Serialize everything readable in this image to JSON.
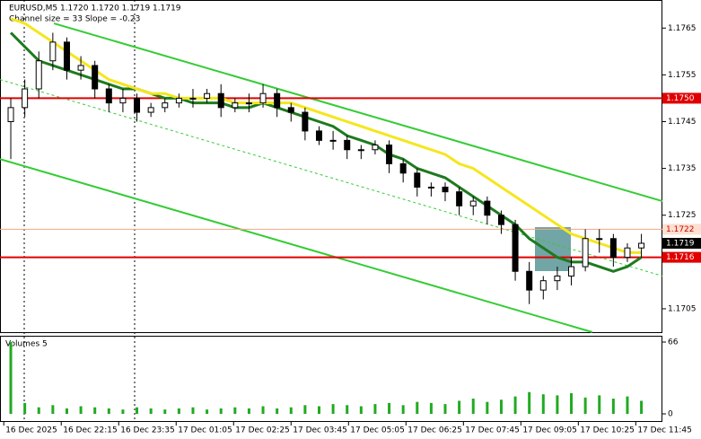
{
  "chart_data": {
    "type": "candlestick",
    "symbol_line": "EURUSD,M5  1.1720 1.1720 1.1719 1.1719",
    "channel_line": "Channel size = 33 Slope = -0.23",
    "volume_title": "Volumes 5",
    "open": [
      1.1745,
      1.1748,
      1.1752,
      1.1758,
      1.1762,
      1.1756,
      1.1757,
      1.1752,
      1.1749,
      1.175,
      1.1747,
      1.1748,
      1.1749,
      1.175,
      1.175,
      1.1751,
      1.1748,
      1.1749,
      1.1749,
      1.1751,
      1.1748,
      1.1747,
      1.1743,
      1.1741,
      1.1741,
      1.1739,
      1.1739,
      1.174,
      1.1736,
      1.1734,
      1.1731,
      1.1731,
      1.173,
      1.1727,
      1.1728,
      1.1725,
      1.1723,
      1.1713,
      1.1709,
      1.1711,
      1.1712,
      1.1714,
      1.172,
      1.172,
      1.1716,
      1.1718
    ],
    "high": [
      1.175,
      1.1754,
      1.176,
      1.1764,
      1.1763,
      1.1759,
      1.1758,
      1.1753,
      1.1752,
      1.1751,
      1.1749,
      1.175,
      1.1751,
      1.1752,
      1.1752,
      1.1753,
      1.175,
      1.1751,
      1.1753,
      1.1752,
      1.1749,
      1.1748,
      1.1744,
      1.1743,
      1.1742,
      1.174,
      1.1741,
      1.1741,
      1.1737,
      1.1735,
      1.1732,
      1.1732,
      1.1731,
      1.1729,
      1.1729,
      1.1726,
      1.1724,
      1.1715,
      1.1712,
      1.1714,
      1.1716,
      1.1722,
      1.1722,
      1.1721,
      1.1719,
      1.1721
    ],
    "low": [
      1.1737,
      1.1746,
      1.175,
      1.1756,
      1.1754,
      1.1754,
      1.175,
      1.1747,
      1.1747,
      1.1745,
      1.1746,
      1.1747,
      1.1748,
      1.1748,
      1.1749,
      1.1746,
      1.1747,
      1.1747,
      1.1748,
      1.1746,
      1.1745,
      1.1741,
      1.174,
      1.1739,
      1.1737,
      1.1737,
      1.1738,
      1.1734,
      1.1732,
      1.1729,
      1.1729,
      1.1728,
      1.1725,
      1.1725,
      1.1723,
      1.1721,
      1.1711,
      1.1706,
      1.1707,
      1.1709,
      1.171,
      1.1713,
      1.1717,
      1.1714,
      1.1715,
      1.1716
    ],
    "close": [
      1.1748,
      1.1752,
      1.1758,
      1.1762,
      1.1756,
      1.1757,
      1.1752,
      1.1749,
      1.175,
      1.1747,
      1.1748,
      1.1749,
      1.175,
      1.175,
      1.1751,
      1.1748,
      1.1749,
      1.1749,
      1.1751,
      1.1748,
      1.1747,
      1.1743,
      1.1741,
      1.1741,
      1.1739,
      1.1739,
      1.174,
      1.1736,
      1.1734,
      1.1731,
      1.1731,
      1.173,
      1.1727,
      1.1728,
      1.1725,
      1.1723,
      1.1713,
      1.1709,
      1.1711,
      1.1712,
      1.1714,
      1.172,
      1.172,
      1.1716,
      1.1718,
      1.1719
    ],
    "moving_averages": [
      {
        "color": "#1e7a1e",
        "width": 3,
        "values": [
          1.1764,
          1.1761,
          1.1758,
          1.1757,
          1.1756,
          1.1755,
          1.1754,
          1.1753,
          1.1752,
          1.1752,
          1.1751,
          1.175,
          1.175,
          1.1749,
          1.1749,
          1.1749,
          1.1748,
          1.1748,
          1.1749,
          1.1748,
          1.1747,
          1.1746,
          1.1745,
          1.1744,
          1.1742,
          1.1741,
          1.174,
          1.1738,
          1.1737,
          1.1735,
          1.1734,
          1.1733,
          1.1731,
          1.1729,
          1.1727,
          1.1725,
          1.1723,
          1.172,
          1.1718,
          1.1716,
          1.1715,
          1.1715,
          1.1714,
          1.1713,
          1.1714,
          1.1716
        ]
      },
      {
        "color": "#f5e61e",
        "width": 3,
        "values": [
          1.1767,
          1.1766,
          1.1764,
          1.1762,
          1.176,
          1.1758,
          1.1756,
          1.1754,
          1.1753,
          1.1752,
          1.1751,
          1.1751,
          1.175,
          1.175,
          1.175,
          1.175,
          1.1749,
          1.1749,
          1.1749,
          1.1749,
          1.1749,
          1.1748,
          1.1747,
          1.1746,
          1.1745,
          1.1744,
          1.1743,
          1.1742,
          1.1741,
          1.174,
          1.1739,
          1.1738,
          1.1736,
          1.1735,
          1.1733,
          1.1731,
          1.1729,
          1.1727,
          1.1725,
          1.1723,
          1.1721,
          1.172,
          1.1719,
          1.1718,
          1.1717,
          1.1717
        ]
      }
    ],
    "channel": [
      {
        "color": "#33cc33",
        "dash": false,
        "x": [
          3.08,
          46.5
        ],
        "y": [
          1.1766,
          1.1728
        ]
      },
      {
        "color": "#33cc33",
        "dash": false,
        "x": [
          -0.77,
          41.5
        ],
        "y": [
          1.1737,
          1.17
        ]
      },
      {
        "color": "#33cc33",
        "dash": true,
        "x": [
          -0.77,
          46.5
        ],
        "y": [
          1.1754,
          1.1712
        ]
      }
    ],
    "volume": [
      66,
      10,
      6,
      8,
      5,
      7,
      6,
      5,
      4,
      6,
      5,
      4,
      5,
      6,
      4,
      5,
      6,
      5,
      7,
      5,
      6,
      8,
      7,
      9,
      8,
      7,
      9,
      10,
      8,
      11,
      10,
      9,
      12,
      14,
      11,
      13,
      16,
      20,
      18,
      17,
      19,
      15,
      17,
      14,
      16,
      12
    ],
    "ylim": [
      1.17,
      1.1771
    ],
    "yticks": [
      1.1765,
      1.1755,
      1.1745,
      1.1735,
      1.1725,
      1.1705
    ],
    "levels": [
      {
        "value": 1.175,
        "label": "1.1750",
        "color": "#e00000"
      },
      {
        "value": 1.1716,
        "label": "1.1716",
        "color": "#e00000"
      },
      {
        "value": 1.1722,
        "label": "1.1722",
        "color": "#f4a582"
      },
      {
        "value": 1.1719,
        "label": "1.1719",
        "color": "#000000"
      }
    ],
    "vlim": [
      0,
      66
    ],
    "vticks": [
      0,
      66
    ],
    "xlim": [
      -0.77,
      46.5
    ],
    "xticks": [
      {
        "value": -0.5,
        "label": "16 Dec 2025"
      },
      {
        "value": 3.6,
        "label": "16 Dec 22:15"
      },
      {
        "value": 7.7,
        "label": "16 Dec 23:35"
      },
      {
        "value": 11.8,
        "label": "17 Dec 01:05"
      },
      {
        "value": 15.9,
        "label": "17 Dec 02:25"
      },
      {
        "value": 20.0,
        "label": "17 Dec 03:45"
      },
      {
        "value": 24.1,
        "label": "17 Dec 05:05"
      },
      {
        "value": 28.2,
        "label": "17 Dec 06:25"
      },
      {
        "value": 32.3,
        "label": "17 Dec 07:45"
      },
      {
        "value": 36.4,
        "label": "17 Dec 09:05"
      },
      {
        "value": 40.5,
        "label": "17 Dec 10:25"
      },
      {
        "value": 44.6,
        "label": "17 Dec 11:45"
      }
    ],
    "candle_color": "#000000",
    "volume_color": "#22aa22"
  }
}
